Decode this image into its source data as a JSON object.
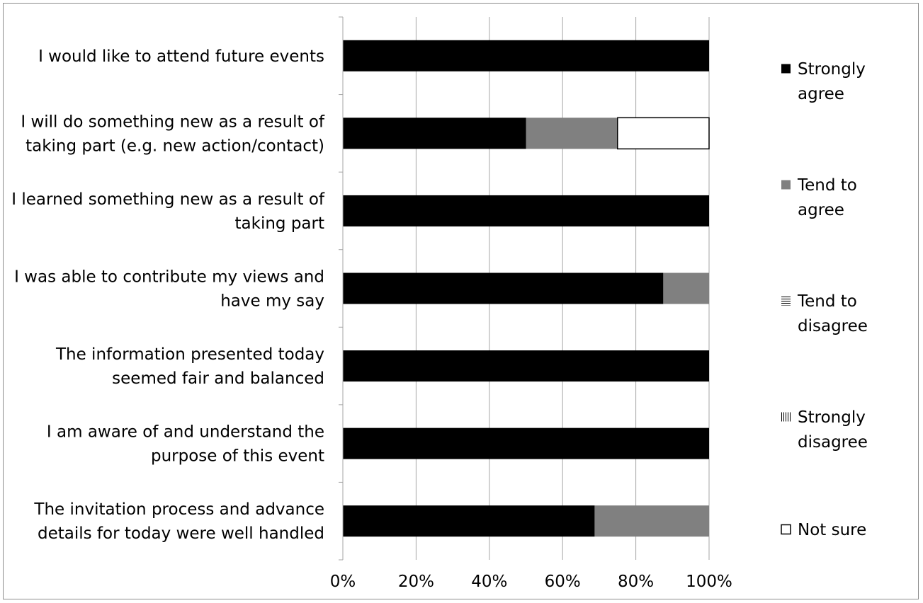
{
  "chart_data": {
    "type": "bar",
    "orientation": "horizontal",
    "stacked": true,
    "percent_stacked": true,
    "categories": [
      [
        "The invitation process and advance",
        "details for today were well handled"
      ],
      [
        "I am aware of and understand the",
        "purpose of this event"
      ],
      [
        "The information presented today",
        "seemed fair and balanced"
      ],
      [
        "I was able to contribute my views and",
        "have my say"
      ],
      [
        "I learned something new as a result of",
        "taking part"
      ],
      [
        "I will do something new as a result of",
        "taking part (e.g. new action/contact)"
      ],
      [
        "I would like to attend future events"
      ]
    ],
    "series": [
      {
        "name": [
          "Strongly",
          "agree"
        ],
        "key": "strongly_agree",
        "color": "#000000",
        "pattern": "solid",
        "values": [
          68.75,
          100,
          100,
          87.5,
          100,
          50,
          100
        ]
      },
      {
        "name": [
          "Tend to",
          "agree"
        ],
        "key": "tend_to_agree",
        "color": "#808080",
        "pattern": "solid",
        "values": [
          31.25,
          0,
          0,
          12.5,
          0,
          25,
          0
        ]
      },
      {
        "name": [
          "Tend to",
          "disagree"
        ],
        "key": "tend_to_disagree",
        "color": "#000000",
        "pattern": "horizontal-lines",
        "values": [
          0,
          0,
          0,
          0,
          0,
          0,
          0
        ]
      },
      {
        "name": [
          "Strongly",
          "disagree"
        ],
        "key": "strongly_disagree",
        "color": "#000000",
        "pattern": "vertical-lines",
        "values": [
          0,
          0,
          0,
          0,
          0,
          0,
          0
        ]
      },
      {
        "name": [
          "Not sure"
        ],
        "key": "not_sure",
        "color": "#ffffff",
        "pattern": "outline",
        "values": [
          0,
          0,
          0,
          0,
          0,
          25,
          0
        ]
      }
    ],
    "x_ticks": [
      "0%",
      "20%",
      "40%",
      "60%",
      "80%",
      "100%"
    ],
    "xlim": [
      0,
      100
    ],
    "grid": "vertical",
    "legend_position": "right",
    "title": "",
    "xlabel": "",
    "ylabel": ""
  }
}
